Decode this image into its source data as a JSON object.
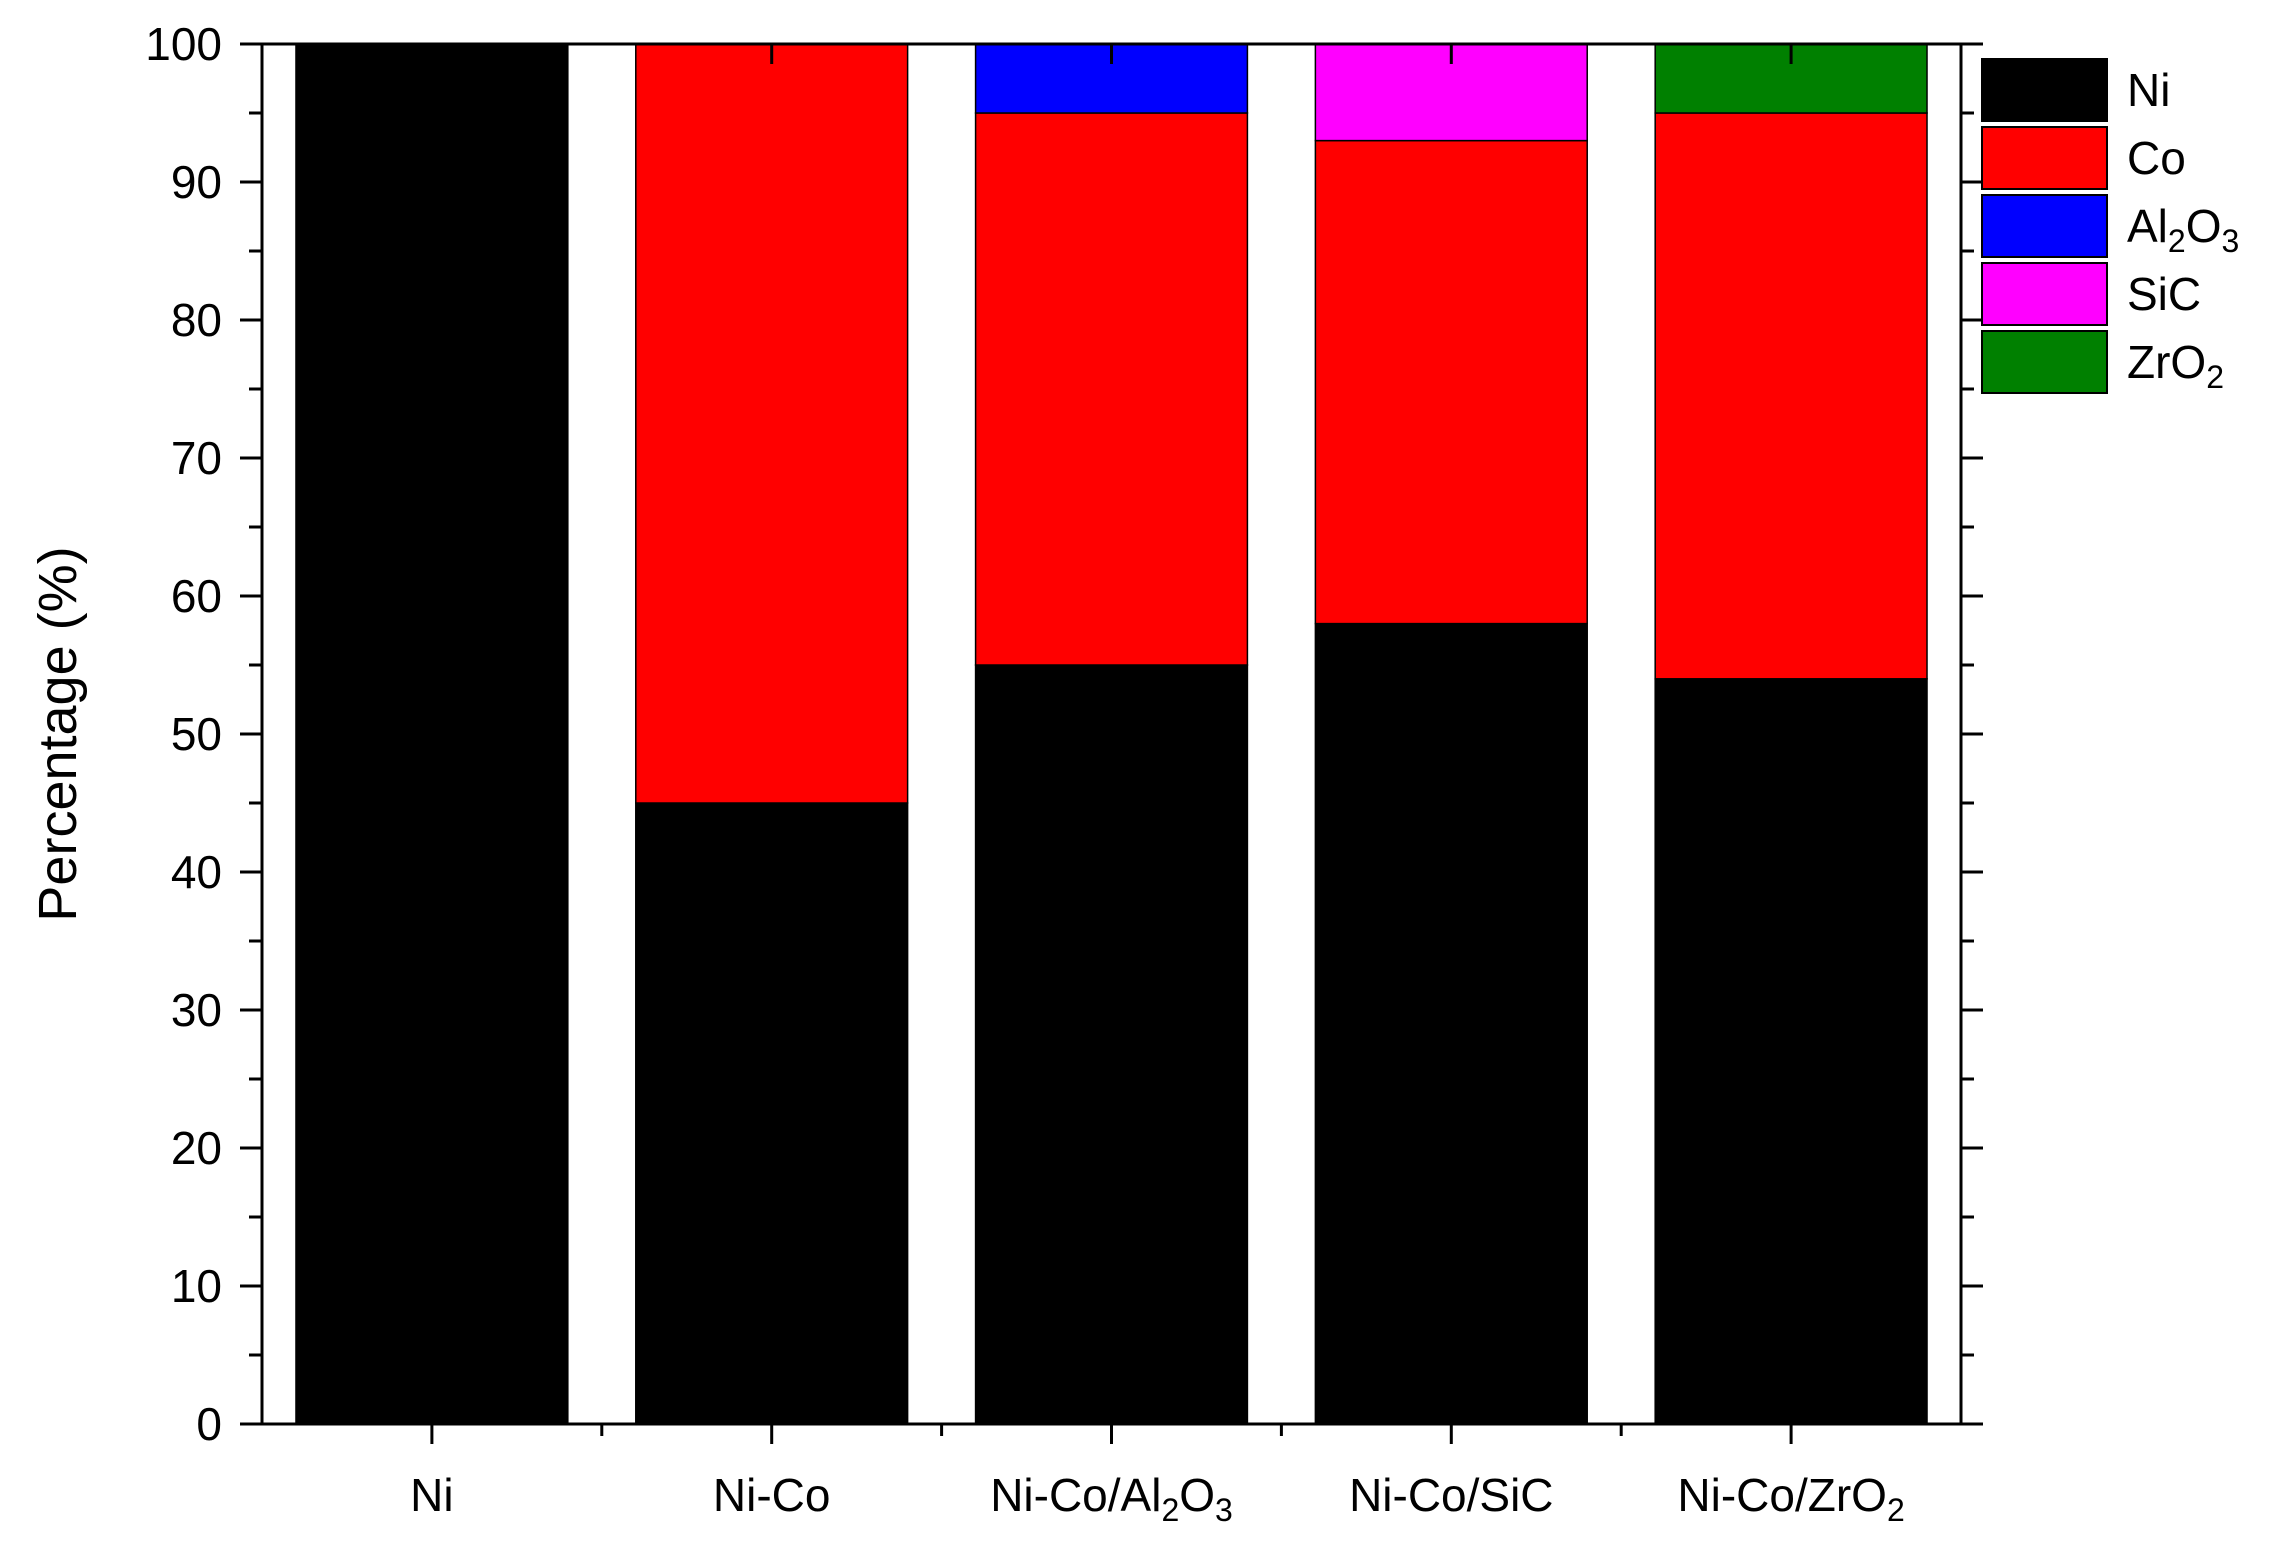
{
  "chart_data": {
    "type": "bar",
    "stacked": true,
    "categories": [
      {
        "base": "Ni-Co/",
        "parts": [
          [
            "Ni",
            false
          ]
        ]
      },
      {
        "base": "",
        "parts": [
          [
            "Ni-Co",
            false
          ]
        ]
      },
      {
        "base": "",
        "parts": [
          [
            "Ni-Co/Al",
            false
          ],
          [
            "2",
            true
          ],
          [
            "O",
            false
          ],
          [
            "3",
            true
          ]
        ]
      },
      {
        "base": "",
        "parts": [
          [
            "Ni-Co/SiC",
            false
          ]
        ]
      },
      {
        "base": "",
        "parts": [
          [
            "Ni-Co/ZrO",
            false
          ],
          [
            "2",
            true
          ]
        ]
      }
    ],
    "category_labels": [
      "Ni",
      "Ni-Co",
      "Ni-Co/Al2O3",
      "Ni-Co/SiC",
      "Ni-Co/ZrO2"
    ],
    "series": [
      {
        "name": "Ni",
        "label_parts": [
          [
            "Ni",
            false
          ]
        ],
        "color": "#000000",
        "values": [
          100,
          45,
          55,
          58,
          54
        ]
      },
      {
        "name": "Co",
        "label_parts": [
          [
            "Co",
            false
          ]
        ],
        "color": "#ff0000",
        "values": [
          0,
          55,
          40,
          35,
          41
        ]
      },
      {
        "name": "Al2O3",
        "label_parts": [
          [
            "Al",
            false
          ],
          [
            "2",
            true
          ],
          [
            "O",
            false
          ],
          [
            "3",
            true
          ]
        ],
        "color": "#0000ff",
        "values": [
          0,
          0,
          5,
          0,
          0
        ]
      },
      {
        "name": "SiC",
        "label_parts": [
          [
            "SiC",
            false
          ]
        ],
        "color": "#ff00ff",
        "values": [
          0,
          0,
          0,
          7,
          0
        ]
      },
      {
        "name": "ZrO2",
        "label_parts": [
          [
            "ZrO",
            false
          ],
          [
            "2",
            true
          ]
        ],
        "color": "#008000",
        "values": [
          0,
          0,
          0,
          0,
          5
        ]
      }
    ],
    "ylabel": "Percentage (%)",
    "xlabel": "",
    "ylim": [
      0,
      100
    ],
    "yticks": [
      0,
      10,
      20,
      30,
      40,
      50,
      60,
      70,
      80,
      90,
      100
    ],
    "legend_position": "outside-top-right",
    "grid": false
  }
}
